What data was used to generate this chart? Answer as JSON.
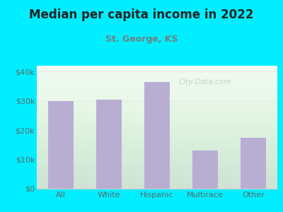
{
  "title": "Median per capita income in 2022",
  "subtitle": "St. George, KS",
  "categories": [
    "All",
    "White",
    "Hispanic",
    "Multirace",
    "Other"
  ],
  "values": [
    30000,
    30500,
    36500,
    13000,
    17500
  ],
  "bar_color": "#b8aed4",
  "background_outer": "#00eeff",
  "background_inner": "#f0faf0",
  "title_color": "#252525",
  "subtitle_color": "#6d8080",
  "tick_label_color": "#5a6a6a",
  "ylim": [
    0,
    42000
  ],
  "yticks": [
    0,
    10000,
    20000,
    30000,
    40000
  ],
  "ytick_labels": [
    "$0",
    "$10k",
    "$20k",
    "$30k",
    "$40k"
  ],
  "watermark": "City-Data.com",
  "watermark_color": "#b8c8c8",
  "grid_color": "#e0ece0",
  "spine_color": "#cccccc"
}
